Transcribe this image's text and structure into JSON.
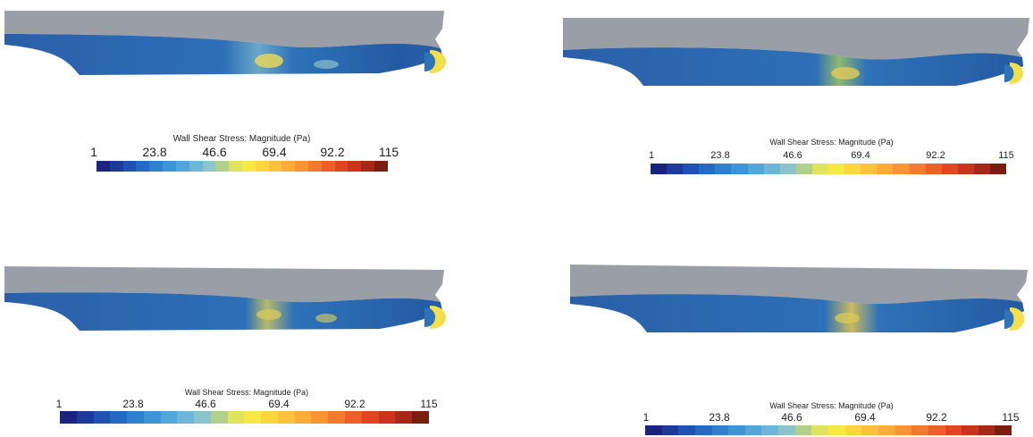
{
  "panels": [
    {
      "colorbar": {
        "title": "Wall Shear Stress: Magnitude (Pa)",
        "ticks": [
          "1",
          "23.8",
          "46.6",
          "69.4",
          "92.2",
          "115"
        ]
      }
    },
    {
      "colorbar": {
        "title": "Wall Shear Stress: Magnitude (Pa)",
        "ticks": [
          "1",
          "23.8",
          "46.6",
          "69.4",
          "92.2",
          "115"
        ]
      }
    },
    {
      "colorbar": {
        "title": "Wall Shear Stress: Magnitude (Pa)",
        "ticks": [
          "1",
          "23.8",
          "46.6",
          "69.4",
          "92.2",
          "115"
        ]
      }
    },
    {
      "colorbar": {
        "title": "Wall Shear Stress: Magnitude (Pa)",
        "ticks": [
          "1",
          "23.8",
          "46.6",
          "69.4",
          "92.2",
          "115"
        ]
      }
    }
  ],
  "colormap": [
    "#1a237e",
    "#1c3a9a",
    "#1f52b3",
    "#2469c4",
    "#2f80cf",
    "#3d94d6",
    "#52a6d9",
    "#6db6d7",
    "#8cc4cc",
    "#b0d18c",
    "#dfe35d",
    "#f7e843",
    "#fcd63d",
    "#fdc23b",
    "#fdac37",
    "#fb9533",
    "#f67a2e",
    "#ee5f28",
    "#e24522",
    "#cc331c",
    "#a72816",
    "#7a1e0f"
  ]
}
